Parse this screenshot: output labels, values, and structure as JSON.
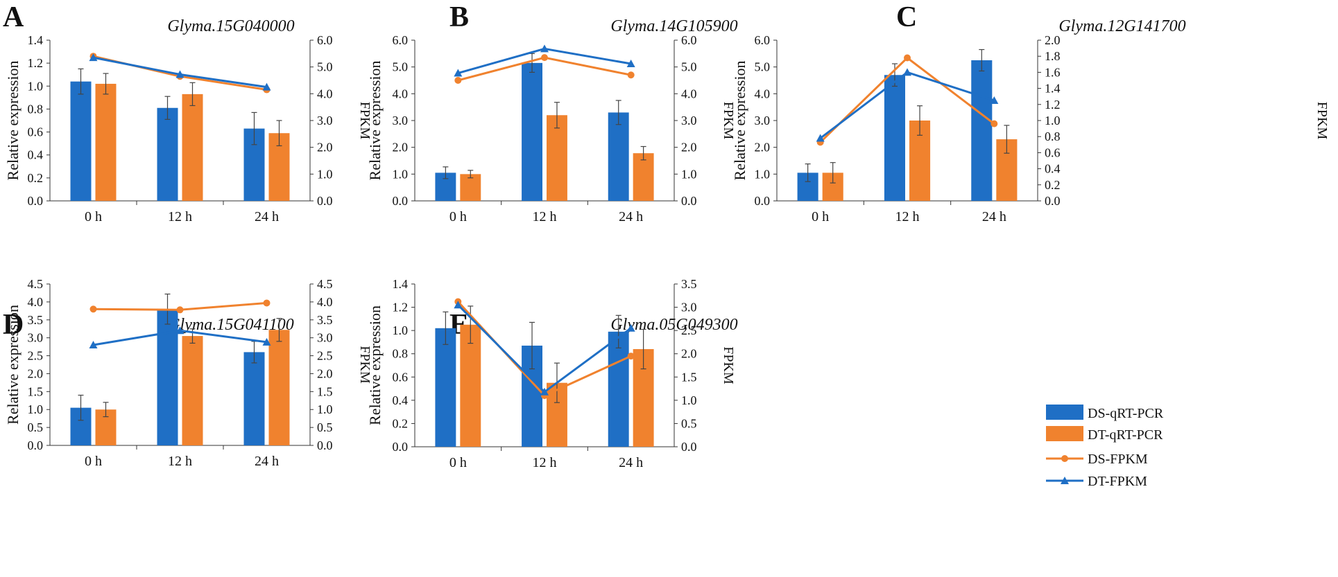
{
  "colors": {
    "ds_bar": "#1f6fc5",
    "dt_bar": "#f0822e",
    "ds_line": "#f0822e",
    "dt_line": "#1f6fc5",
    "axis": "#333333",
    "error": "#444444"
  },
  "legend": {
    "items": [
      {
        "label": "DS-qRT-PCR",
        "kind": "bar",
        "color": "#1f6fc5"
      },
      {
        "label": "DT-qRT-PCR",
        "kind": "bar",
        "color": "#f0822e"
      },
      {
        "label": "DS-FPKM",
        "kind": "line-circle",
        "color": "#f0822e"
      },
      {
        "label": "DT-FPKM",
        "kind": "line-triangle",
        "color": "#1f6fc5"
      }
    ]
  },
  "chart_data": [
    {
      "panel": "A",
      "title": "Glyma.15G040000",
      "type": "bar+line",
      "categories": [
        "0 h",
        "12 h",
        "24 h"
      ],
      "ylabel": "Relative expression",
      "y2label": "FPKM",
      "ylim": [
        0,
        1.4
      ],
      "yticks": [
        "0.0",
        "0.2",
        "0.4",
        "0.6",
        "0.8",
        "1.0",
        "1.2",
        "1.4"
      ],
      "y2lim": [
        0,
        6.0
      ],
      "y2ticks": [
        "0.0",
        "1.0",
        "2.0",
        "3.0",
        "4.0",
        "5.0",
        "6.0"
      ],
      "bars": [
        {
          "name": "DS-qRT-PCR",
          "values": [
            1.04,
            0.81,
            0.63
          ],
          "errors": [
            0.11,
            0.1,
            0.14
          ]
        },
        {
          "name": "DT-qRT-PCR",
          "values": [
            1.02,
            0.93,
            0.59
          ],
          "errors": [
            0.09,
            0.1,
            0.11
          ]
        }
      ],
      "lines": [
        {
          "name": "DS-FPKM",
          "values": [
            5.4,
            4.65,
            4.15
          ]
        },
        {
          "name": "DT-FPKM",
          "values": [
            5.35,
            4.72,
            4.25
          ]
        }
      ]
    },
    {
      "panel": "B",
      "title": "Glyma.14G105900",
      "type": "bar+line",
      "categories": [
        "0 h",
        "12 h",
        "24 h"
      ],
      "ylabel": "Relative expression",
      "y2label": "FPKM",
      "ylim": [
        0,
        6.0
      ],
      "yticks": [
        "0.0",
        "1.0",
        "2.0",
        "3.0",
        "4.0",
        "5.0",
        "6.0"
      ],
      "y2lim": [
        0,
        6.0
      ],
      "y2ticks": [
        "0.0",
        "1.0",
        "2.0",
        "3.0",
        "4.0",
        "5.0",
        "6.0"
      ],
      "bars": [
        {
          "name": "DS-qRT-PCR",
          "values": [
            1.05,
            5.15,
            3.3
          ],
          "errors": [
            0.22,
            0.35,
            0.45
          ]
        },
        {
          "name": "DT-qRT-PCR",
          "values": [
            1.0,
            3.2,
            1.78
          ],
          "errors": [
            0.14,
            0.48,
            0.25
          ]
        }
      ],
      "lines": [
        {
          "name": "DS-FPKM",
          "values": [
            4.5,
            5.35,
            4.7
          ]
        },
        {
          "name": "DT-FPKM",
          "values": [
            4.77,
            5.68,
            5.12
          ]
        }
      ]
    },
    {
      "panel": "C",
      "title": "Glyma.12G141700",
      "type": "bar+line",
      "categories": [
        "0 h",
        "12 h",
        "24 h"
      ],
      "ylabel": "Relative expression",
      "y2label": "FPKM",
      "ylim": [
        0,
        6.0
      ],
      "yticks": [
        "0.0",
        "1.0",
        "2.0",
        "3.0",
        "4.0",
        "5.0",
        "6.0"
      ],
      "y2lim": [
        0,
        2.0
      ],
      "y2ticks": [
        "0.0",
        "0.2",
        "0.4",
        "0.6",
        "0.8",
        "1.0",
        "1.2",
        "1.4",
        "1.6",
        "1.8",
        "2.0"
      ],
      "bars": [
        {
          "name": "DS-qRT-PCR",
          "values": [
            1.05,
            4.7,
            5.25
          ],
          "errors": [
            0.33,
            0.42,
            0.4
          ]
        },
        {
          "name": "DT-qRT-PCR",
          "values": [
            1.05,
            3.0,
            2.3
          ],
          "errors": [
            0.38,
            0.55,
            0.52
          ]
        }
      ],
      "lines": [
        {
          "name": "DS-FPKM",
          "values": [
            0.73,
            1.78,
            0.96
          ]
        },
        {
          "name": "DT-FPKM",
          "values": [
            0.78,
            1.6,
            1.25
          ]
        }
      ]
    },
    {
      "panel": "D",
      "title": "Glyma.15G041100",
      "type": "bar+line",
      "categories": [
        "0 h",
        "12 h",
        "24 h"
      ],
      "ylabel": "Relative expression",
      "y2label": "FPKM",
      "ylim": [
        0,
        4.5
      ],
      "yticks": [
        "0.0",
        "0.5",
        "1.0",
        "1.5",
        "2.0",
        "2.5",
        "3.0",
        "3.5",
        "4.0",
        "4.5"
      ],
      "y2lim": [
        0,
        4.5
      ],
      "y2ticks": [
        "0.0",
        "0.5",
        "1.0",
        "1.5",
        "2.0",
        "2.5",
        "3.0",
        "3.5",
        "4.0",
        "4.5"
      ],
      "bars": [
        {
          "name": "DS-qRT-PCR",
          "values": [
            1.05,
            3.8,
            2.6
          ],
          "errors": [
            0.35,
            0.42,
            0.3
          ]
        },
        {
          "name": "DT-qRT-PCR",
          "values": [
            1.0,
            3.05,
            3.22
          ],
          "errors": [
            0.2,
            0.2,
            0.32
          ]
        }
      ],
      "lines": [
        {
          "name": "DS-FPKM",
          "values": [
            3.8,
            3.78,
            3.97
          ]
        },
        {
          "name": "DT-FPKM",
          "values": [
            2.8,
            3.2,
            2.88
          ]
        }
      ]
    },
    {
      "panel": "E",
      "title": "Glyma.05G049300",
      "type": "bar+line",
      "categories": [
        "0 h",
        "12 h",
        "24 h"
      ],
      "ylabel": "Relative expression",
      "y2label": "FPKM",
      "ylim": [
        0,
        1.4
      ],
      "yticks": [
        "0.0",
        "0.2",
        "0.4",
        "0.6",
        "0.8",
        "1.0",
        "1.2",
        "1.4"
      ],
      "y2lim": [
        0,
        3.5
      ],
      "y2ticks": [
        "0.0",
        "0.5",
        "1.0",
        "1.5",
        "2.0",
        "2.5",
        "3.0",
        "3.5"
      ],
      "bars": [
        {
          "name": "DS-qRT-PCR",
          "values": [
            1.02,
            0.87,
            0.99
          ],
          "errors": [
            0.14,
            0.2,
            0.14
          ]
        },
        {
          "name": "DT-qRT-PCR",
          "values": [
            1.05,
            0.55,
            0.84
          ],
          "errors": [
            0.16,
            0.17,
            0.17
          ]
        }
      ],
      "lines": [
        {
          "name": "DS-FPKM",
          "values": [
            3.12,
            1.1,
            1.95
          ]
        },
        {
          "name": "DT-FPKM",
          "values": [
            3.05,
            1.18,
            2.55
          ]
        }
      ]
    }
  ]
}
